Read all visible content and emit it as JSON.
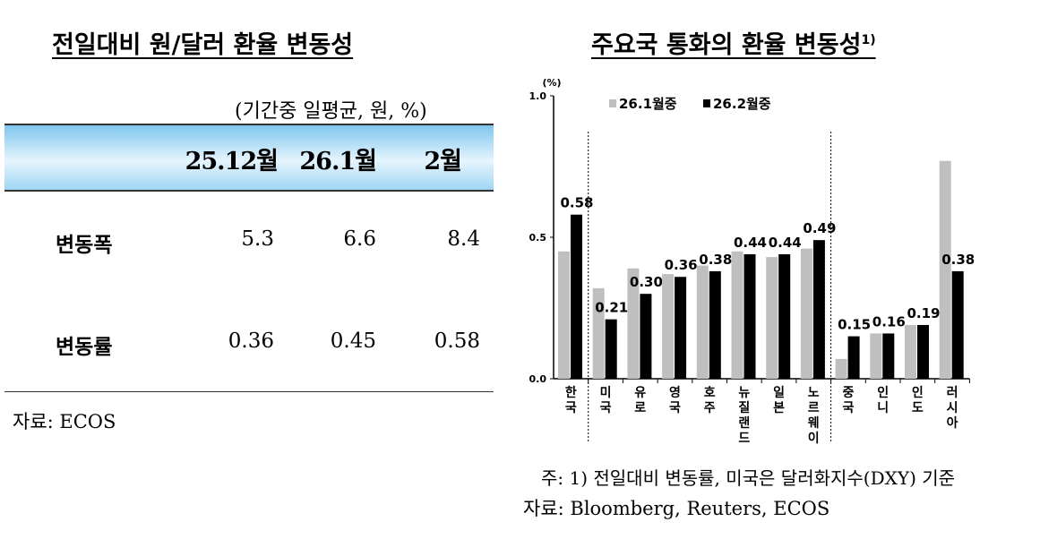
{
  "left": {
    "title": "전일대비 원/달러 환율 변동성",
    "unit": "(기간중 일평균, 원, %)",
    "columns": [
      "25.12월",
      "26.1월",
      "2월"
    ],
    "rows": [
      {
        "label": "변동폭",
        "values": [
          "5.3",
          "6.6",
          "8.4"
        ]
      },
      {
        "label": "변동률",
        "values": [
          "0.36",
          "0.45",
          "0.58"
        ]
      }
    ],
    "source": "자료: ECOS"
  },
  "right": {
    "title": "주요국 통화의 환율 변동성",
    "title_sup": "1)",
    "note": "주: 1)  전일대비 변동률, 미국은 달러화지수(DXY) 기준",
    "source": "자료: Bloomberg, Reuters, ECOS"
  },
  "chart_data": {
    "type": "bar",
    "title": "주요국 통화의 환율 변동성",
    "ylabel": "(%)",
    "ylim": [
      0,
      1.0
    ],
    "yticks": [
      "0.0",
      "0.5",
      "1.0"
    ],
    "legend_position": "top-left",
    "categories": [
      "한국",
      "미국",
      "유로",
      "영국",
      "호주",
      "뉴질랜드",
      "일본",
      "노르웨이",
      "중국",
      "인니",
      "인도",
      "러시아"
    ],
    "series": [
      {
        "name": "26.1월중",
        "color": "#bfbfbf",
        "values": [
          0.45,
          0.32,
          0.39,
          0.37,
          0.4,
          0.45,
          0.43,
          0.46,
          0.07,
          0.16,
          0.19,
          0.77
        ]
      },
      {
        "name": "26.2월중",
        "color": "#000000",
        "values": [
          0.58,
          0.21,
          0.3,
          0.36,
          0.38,
          0.44,
          0.44,
          0.49,
          0.15,
          0.16,
          0.19,
          0.38
        ],
        "labels": [
          "0.58",
          "0.21",
          "0.30",
          "0.36",
          "0.38",
          "0.44",
          "0.44",
          "0.49",
          "0.15",
          "0.16",
          "0.19",
          "0.38"
        ]
      }
    ]
  }
}
